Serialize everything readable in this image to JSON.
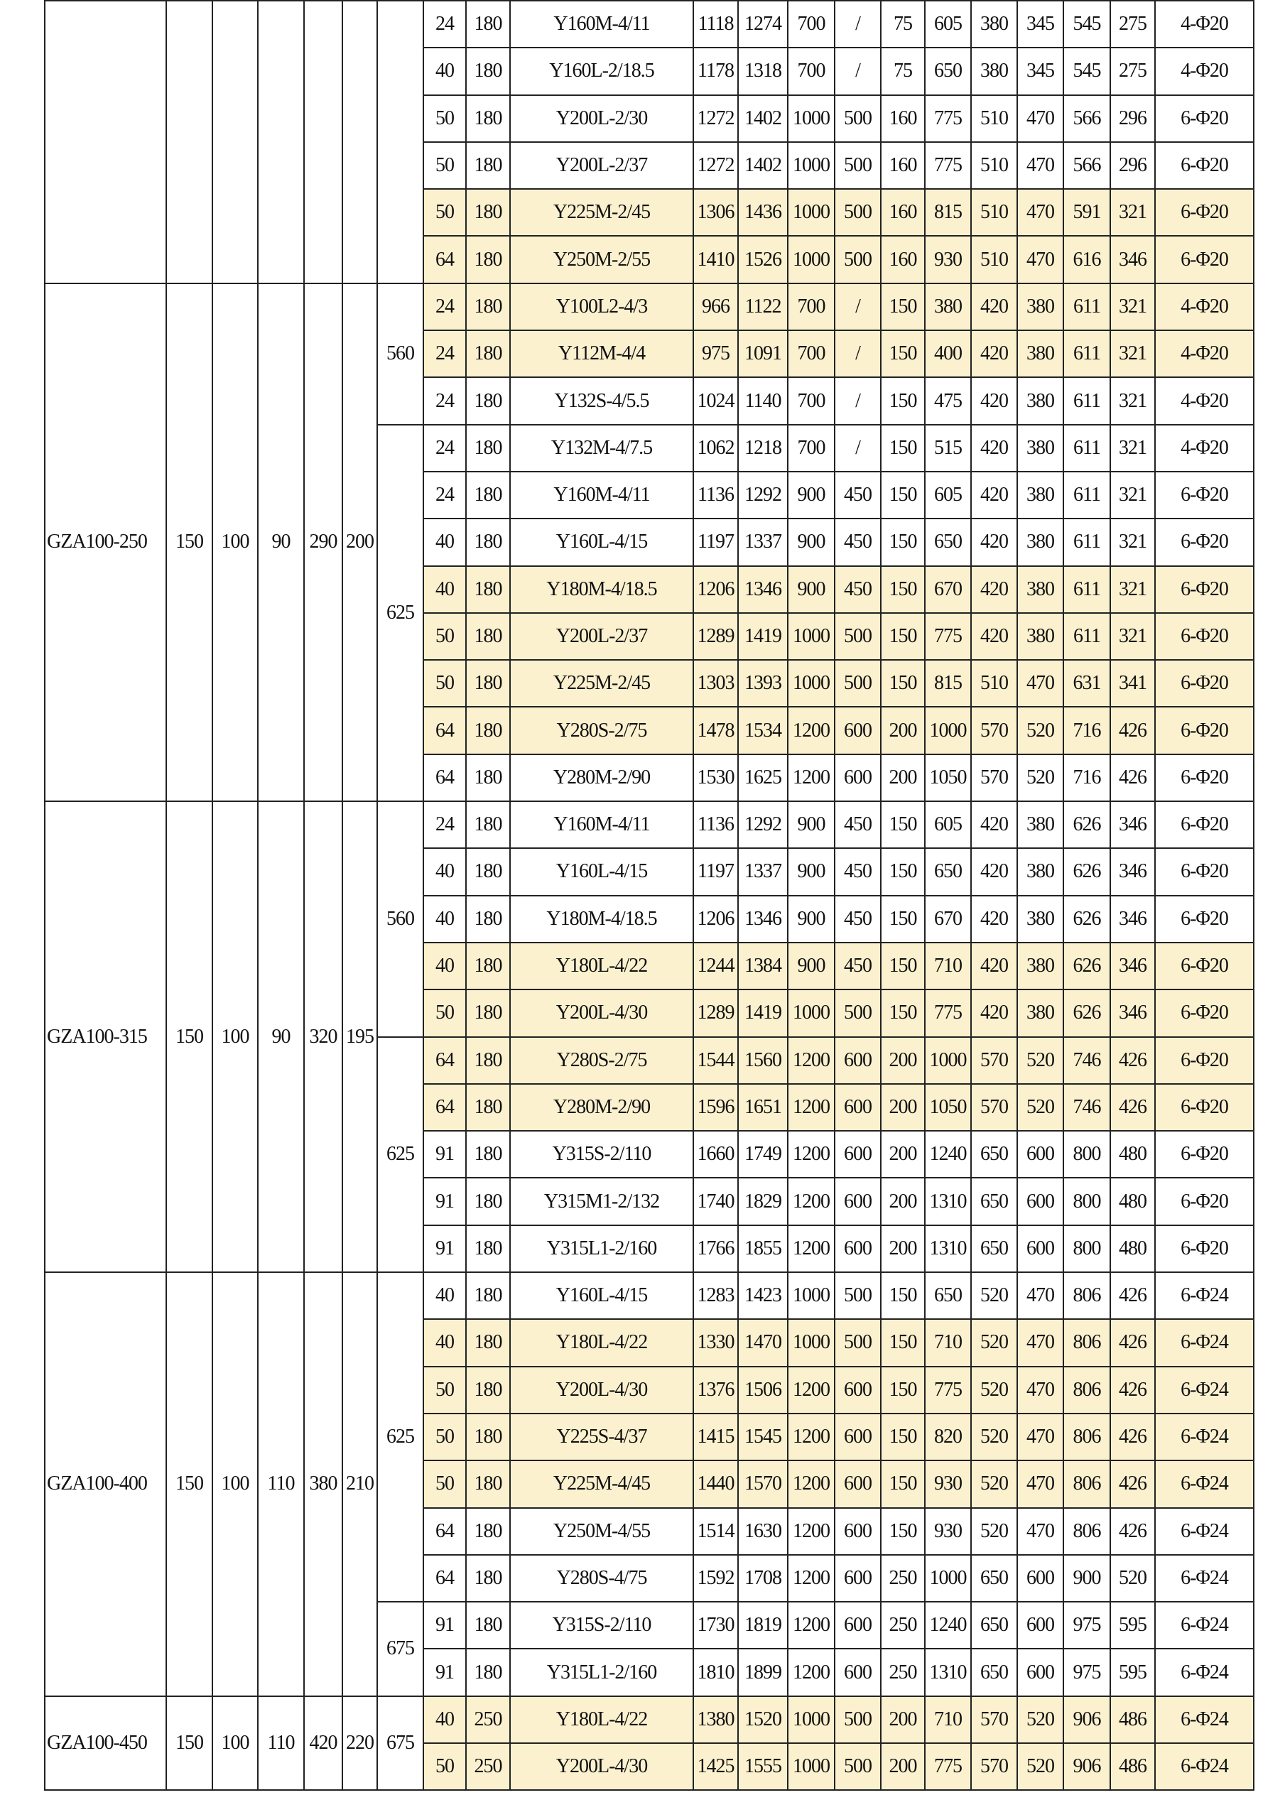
{
  "highlight_color": "#fcf1cf",
  "groups": [
    {
      "model": "",
      "c2": "",
      "c3": "",
      "c4": "",
      "c5": "",
      "c6": "",
      "sections": [
        {
          "c7": "",
          "rows": [
            {
              "highlight": false,
              "values": [
                "24",
                "180",
                "Y160M-4/11",
                "1118",
                "1274",
                "700",
                "/",
                "75",
                "605",
                "380",
                "345",
                "545",
                "275",
                "4-Φ20"
              ]
            },
            {
              "highlight": false,
              "values": [
                "40",
                "180",
                "Y160L-2/18.5",
                "1178",
                "1318",
                "700",
                "/",
                "75",
                "650",
                "380",
                "345",
                "545",
                "275",
                "4-Φ20"
              ]
            },
            {
              "highlight": false,
              "values": [
                "50",
                "180",
                "Y200L-2/30",
                "1272",
                "1402",
                "1000",
                "500",
                "160",
                "775",
                "510",
                "470",
                "566",
                "296",
                "6-Φ20"
              ]
            },
            {
              "highlight": false,
              "values": [
                "50",
                "180",
                "Y200L-2/37",
                "1272",
                "1402",
                "1000",
                "500",
                "160",
                "775",
                "510",
                "470",
                "566",
                "296",
                "6-Φ20"
              ]
            },
            {
              "highlight": true,
              "values": [
                "50",
                "180",
                "Y225M-2/45",
                "1306",
                "1436",
                "1000",
                "500",
                "160",
                "815",
                "510",
                "470",
                "591",
                "321",
                "6-Φ20"
              ]
            },
            {
              "highlight": true,
              "values": [
                "64",
                "180",
                "Y250M-2/55",
                "1410",
                "1526",
                "1000",
                "500",
                "160",
                "930",
                "510",
                "470",
                "616",
                "346",
                "6-Φ20"
              ]
            }
          ]
        }
      ]
    },
    {
      "model": "GZA100-250",
      "c2": "150",
      "c3": "100",
      "c4": "90",
      "c5": "290",
      "c6": "200",
      "sections": [
        {
          "c7": "560",
          "rows": [
            {
              "highlight": true,
              "values": [
                "24",
                "180",
                "Y100L2-4/3",
                "966",
                "1122",
                "700",
                "/",
                "150",
                "380",
                "420",
                "380",
                "611",
                "321",
                "4-Φ20"
              ]
            },
            {
              "highlight": true,
              "values": [
                "24",
                "180",
                "Y112M-4/4",
                "975",
                "1091",
                "700",
                "/",
                "150",
                "400",
                "420",
                "380",
                "611",
                "321",
                "4-Φ20"
              ]
            },
            {
              "highlight": false,
              "values": [
                "24",
                "180",
                "Y132S-4/5.5",
                "1024",
                "1140",
                "700",
                "/",
                "150",
                "475",
                "420",
                "380",
                "611",
                "321",
                "4-Φ20"
              ]
            }
          ]
        },
        {
          "c7": "625",
          "rows": [
            {
              "highlight": false,
              "values": [
                "24",
                "180",
                "Y132M-4/7.5",
                "1062",
                "1218",
                "700",
                "/",
                "150",
                "515",
                "420",
                "380",
                "611",
                "321",
                "4-Φ20"
              ]
            },
            {
              "highlight": false,
              "values": [
                "24",
                "180",
                "Y160M-4/11",
                "1136",
                "1292",
                "900",
                "450",
                "150",
                "605",
                "420",
                "380",
                "611",
                "321",
                "6-Φ20"
              ]
            },
            {
              "highlight": false,
              "values": [
                "40",
                "180",
                "Y160L-4/15",
                "1197",
                "1337",
                "900",
                "450",
                "150",
                "650",
                "420",
                "380",
                "611",
                "321",
                "6-Φ20"
              ]
            },
            {
              "highlight": true,
              "values": [
                "40",
                "180",
                "Y180M-4/18.5",
                "1206",
                "1346",
                "900",
                "450",
                "150",
                "670",
                "420",
                "380",
                "611",
                "321",
                "6-Φ20"
              ]
            },
            {
              "highlight": true,
              "values": [
                "50",
                "180",
                "Y200L-2/37",
                "1289",
                "1419",
                "1000",
                "500",
                "150",
                "775",
                "420",
                "380",
                "611",
                "321",
                "6-Φ20"
              ]
            },
            {
              "highlight": true,
              "values": [
                "50",
                "180",
                "Y225M-2/45",
                "1303",
                "1393",
                "1000",
                "500",
                "150",
                "815",
                "510",
                "470",
                "631",
                "341",
                "6-Φ20"
              ]
            },
            {
              "highlight": true,
              "values": [
                "64",
                "180",
                "Y280S-2/75",
                "1478",
                "1534",
                "1200",
                "600",
                "200",
                "1000",
                "570",
                "520",
                "716",
                "426",
                "6-Φ20"
              ]
            },
            {
              "highlight": false,
              "values": [
                "64",
                "180",
                "Y280M-2/90",
                "1530",
                "1625",
                "1200",
                "600",
                "200",
                "1050",
                "570",
                "520",
                "716",
                "426",
                "6-Φ20"
              ]
            }
          ]
        }
      ]
    },
    {
      "model": "GZA100-315",
      "c2": "150",
      "c3": "100",
      "c4": "90",
      "c5": "320",
      "c6": "195",
      "sections": [
        {
          "c7": "560",
          "rows": [
            {
              "highlight": false,
              "values": [
                "24",
                "180",
                "Y160M-4/11",
                "1136",
                "1292",
                "900",
                "450",
                "150",
                "605",
                "420",
                "380",
                "626",
                "346",
                "6-Φ20"
              ]
            },
            {
              "highlight": false,
              "values": [
                "40",
                "180",
                "Y160L-4/15",
                "1197",
                "1337",
                "900",
                "450",
                "150",
                "650",
                "420",
                "380",
                "626",
                "346",
                "6-Φ20"
              ]
            },
            {
              "highlight": false,
              "values": [
                "40",
                "180",
                "Y180M-4/18.5",
                "1206",
                "1346",
                "900",
                "450",
                "150",
                "670",
                "420",
                "380",
                "626",
                "346",
                "6-Φ20"
              ]
            },
            {
              "highlight": true,
              "values": [
                "40",
                "180",
                "Y180L-4/22",
                "1244",
                "1384",
                "900",
                "450",
                "150",
                "710",
                "420",
                "380",
                "626",
                "346",
                "6-Φ20"
              ]
            },
            {
              "highlight": true,
              "values": [
                "50",
                "180",
                "Y200L-4/30",
                "1289",
                "1419",
                "1000",
                "500",
                "150",
                "775",
                "420",
                "380",
                "626",
                "346",
                "6-Φ20"
              ]
            }
          ]
        },
        {
          "c7": "625",
          "rows": [
            {
              "highlight": true,
              "values": [
                "64",
                "180",
                "Y280S-2/75",
                "1544",
                "1560",
                "1200",
                "600",
                "200",
                "1000",
                "570",
                "520",
                "746",
                "426",
                "6-Φ20"
              ]
            },
            {
              "highlight": true,
              "values": [
                "64",
                "180",
                "Y280M-2/90",
                "1596",
                "1651",
                "1200",
                "600",
                "200",
                "1050",
                "570",
                "520",
                "746",
                "426",
                "6-Φ20"
              ]
            },
            {
              "highlight": false,
              "values": [
                "91",
                "180",
                "Y315S-2/110",
                "1660",
                "1749",
                "1200",
                "600",
                "200",
                "1240",
                "650",
                "600",
                "800",
                "480",
                "6-Φ20"
              ]
            },
            {
              "highlight": false,
              "values": [
                "91",
                "180",
                "Y315M1-2/132",
                "1740",
                "1829",
                "1200",
                "600",
                "200",
                "1310",
                "650",
                "600",
                "800",
                "480",
                "6-Φ20"
              ]
            },
            {
              "highlight": false,
              "values": [
                "91",
                "180",
                "Y315L1-2/160",
                "1766",
                "1855",
                "1200",
                "600",
                "200",
                "1310",
                "650",
                "600",
                "800",
                "480",
                "6-Φ20"
              ]
            }
          ]
        }
      ]
    },
    {
      "model": "GZA100-400",
      "c2": "150",
      "c3": "100",
      "c4": "110",
      "c5": "380",
      "c6": "210",
      "sections": [
        {
          "c7": "625",
          "rows": [
            {
              "highlight": false,
              "values": [
                "40",
                "180",
                "Y160L-4/15",
                "1283",
                "1423",
                "1000",
                "500",
                "150",
                "650",
                "520",
                "470",
                "806",
                "426",
                "6-Φ24"
              ]
            },
            {
              "highlight": true,
              "values": [
                "40",
                "180",
                "Y180L-4/22",
                "1330",
                "1470",
                "1000",
                "500",
                "150",
                "710",
                "520",
                "470",
                "806",
                "426",
                "6-Φ24"
              ]
            },
            {
              "highlight": true,
              "values": [
                "50",
                "180",
                "Y200L-4/30",
                "1376",
                "1506",
                "1200",
                "600",
                "150",
                "775",
                "520",
                "470",
                "806",
                "426",
                "6-Φ24"
              ]
            },
            {
              "highlight": true,
              "values": [
                "50",
                "180",
                "Y225S-4/37",
                "1415",
                "1545",
                "1200",
                "600",
                "150",
                "820",
                "520",
                "470",
                "806",
                "426",
                "6-Φ24"
              ]
            },
            {
              "highlight": true,
              "values": [
                "50",
                "180",
                "Y225M-4/45",
                "1440",
                "1570",
                "1200",
                "600",
                "150",
                "930",
                "520",
                "470",
                "806",
                "426",
                "6-Φ24"
              ]
            },
            {
              "highlight": false,
              "values": [
                "64",
                "180",
                "Y250M-4/55",
                "1514",
                "1630",
                "1200",
                "600",
                "150",
                "930",
                "520",
                "470",
                "806",
                "426",
                "6-Φ24"
              ]
            },
            {
              "highlight": false,
              "values": [
                "64",
                "180",
                "Y280S-4/75",
                "1592",
                "1708",
                "1200",
                "600",
                "250",
                "1000",
                "650",
                "600",
                "900",
                "520",
                "6-Φ24"
              ]
            }
          ]
        },
        {
          "c7": "675",
          "rows": [
            {
              "highlight": false,
              "values": [
                "91",
                "180",
                "Y315S-2/110",
                "1730",
                "1819",
                "1200",
                "600",
                "250",
                "1240",
                "650",
                "600",
                "975",
                "595",
                "6-Φ24"
              ]
            },
            {
              "highlight": false,
              "values": [
                "91",
                "180",
                "Y315L1-2/160",
                "1810",
                "1899",
                "1200",
                "600",
                "250",
                "1310",
                "650",
                "600",
                "975",
                "595",
                "6-Φ24"
              ]
            }
          ]
        }
      ]
    },
    {
      "model": "GZA100-450",
      "c2": "150",
      "c3": "100",
      "c4": "110",
      "c5": "420",
      "c6": "220",
      "sections": [
        {
          "c7": "675",
          "rows": [
            {
              "highlight": true,
              "values": [
                "40",
                "250",
                "Y180L-4/22",
                "1380",
                "1520",
                "1000",
                "500",
                "200",
                "710",
                "570",
                "520",
                "906",
                "486",
                "6-Φ24"
              ]
            },
            {
              "highlight": true,
              "values": [
                "50",
                "250",
                "Y200L-4/30",
                "1425",
                "1555",
                "1000",
                "500",
                "200",
                "775",
                "570",
                "520",
                "906",
                "486",
                "6-Φ24"
              ]
            }
          ]
        }
      ]
    }
  ]
}
